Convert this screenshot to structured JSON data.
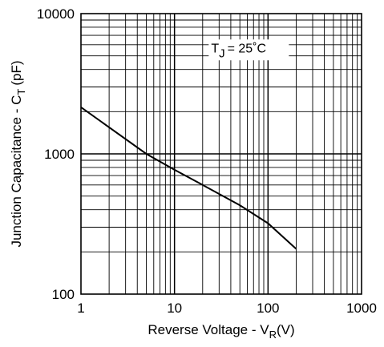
{
  "chart_data": {
    "type": "line",
    "x_scale": "log",
    "y_scale": "log",
    "xlim": [
      1,
      1000
    ],
    "ylim": [
      100,
      10000
    ],
    "x_ticks": [
      "1",
      "10",
      "100",
      "1000"
    ],
    "y_ticks": [
      "100",
      "1000",
      "10000"
    ],
    "xlabel": {
      "main": "Reverse Voltage - V",
      "sub": "R",
      "unit": "(V)"
    },
    "ylabel": {
      "main": "Junction Capacitance - C",
      "sub": "T",
      "unit": "(pF)"
    },
    "annotation": {
      "main": "T",
      "sub": "J",
      "rest": "= 25˚C",
      "x": 30,
      "y": 5300
    },
    "grid": true,
    "series": [
      {
        "x": [
          1,
          5,
          10,
          20,
          50,
          100,
          200
        ],
        "y": [
          2150,
          1000,
          770,
          600,
          430,
          320,
          210
        ]
      }
    ],
    "line_color": "#000000"
  }
}
